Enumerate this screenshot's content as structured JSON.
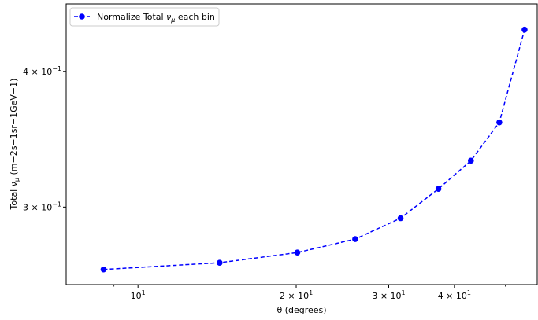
{
  "chart_data": {
    "type": "line",
    "title": "",
    "xlabel": "θ (degrees)",
    "ylabel": "Total ν_μ (m−2s−1sr−1GeV−1)",
    "ylabel_parts": {
      "prefix": "Total ",
      "nu": "ν",
      "mu": "μ",
      "suffix": " (m−2s−1sr−1GeV−1)"
    },
    "xscale": "log",
    "yscale": "log",
    "xlim": [
      7.3,
      57.5
    ],
    "ylim": [
      0.2545,
      0.4615
    ],
    "grid": false,
    "legend_position": "top-left",
    "x_major_ticks": [
      {
        "value": 10,
        "base": "10",
        "exp": "1"
      },
      {
        "value": 20,
        "base": "2 × 10",
        "exp": "1"
      },
      {
        "value": 30,
        "base": "3 × 10",
        "exp": "1"
      },
      {
        "value": 40,
        "base": "4 × 10",
        "exp": "1"
      }
    ],
    "x_minor_ticks": [
      8,
      9,
      50
    ],
    "y_major_ticks": [
      {
        "value": 0.3,
        "base": "3 × 10",
        "exp": "−1"
      },
      {
        "value": 0.4,
        "base": "4 × 10",
        "exp": "−1"
      }
    ],
    "series": [
      {
        "name": "Normalize Total ν_μ each bin",
        "name_parts": {
          "prefix": "Normalize Total ",
          "nu": "ν",
          "mu": "μ",
          "suffix": " each bin"
        },
        "color": "#0000ff",
        "line_style": "dashed",
        "marker": "circle",
        "x": [
          8.6,
          14.3,
          20.1,
          25.9,
          31.6,
          37.3,
          43.0,
          48.7,
          54.4
        ],
        "y": [
          0.2628,
          0.2666,
          0.2724,
          0.2803,
          0.293,
          0.3118,
          0.331,
          0.359,
          0.437
        ]
      }
    ]
  }
}
